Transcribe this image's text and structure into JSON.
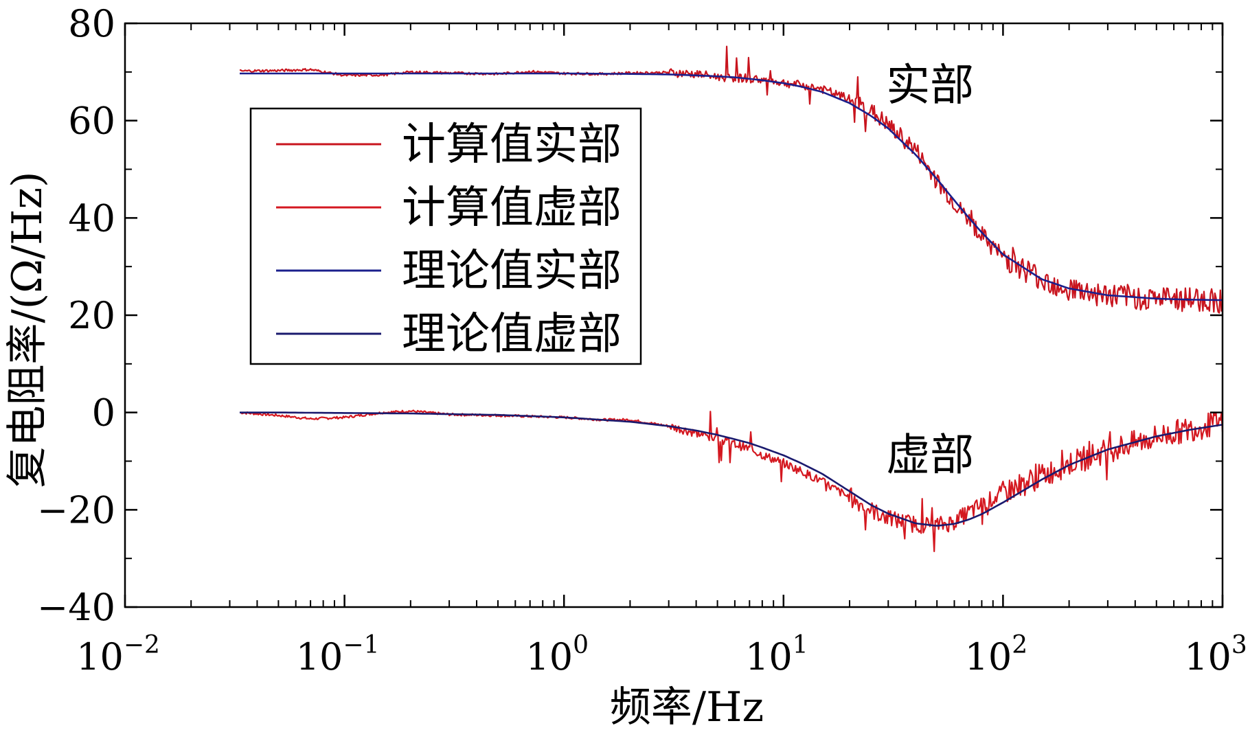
{
  "chart_data": {
    "type": "line",
    "title": "",
    "xlabel": "频率/Hz",
    "ylabel": "复电阻率/(Ω/Hz)",
    "x_scale": "log",
    "xlim": [
      0.01,
      1000
    ],
    "ylim": [
      -40,
      80
    ],
    "grid": false,
    "legend_position": "top-left",
    "x_ticks": [
      {
        "base": "10",
        "exp": "−2",
        "value": 0.01
      },
      {
        "base": "10",
        "exp": "−1",
        "value": 0.1
      },
      {
        "base": "10",
        "exp": "0",
        "value": 1
      },
      {
        "base": "10",
        "exp": "1",
        "value": 10
      },
      {
        "base": "10",
        "exp": "2",
        "value": 100
      },
      {
        "base": "10",
        "exp": "3",
        "value": 1000
      }
    ],
    "y_ticks": [
      {
        "label": "80",
        "value": 80
      },
      {
        "label": "60",
        "value": 60
      },
      {
        "label": "40",
        "value": 40
      },
      {
        "label": "20",
        "value": 20
      },
      {
        "label": "0",
        "value": 0
      },
      {
        "label": "−20",
        "value": -20
      },
      {
        "label": "−40",
        "value": -40
      }
    ],
    "annotations": [
      {
        "text": "实部",
        "x": 50,
        "y": 67
      },
      {
        "text": "虚部",
        "x": 50,
        "y": -9
      }
    ],
    "series": [
      {
        "name": "计算值实部",
        "color": "#c8141e",
        "x": [
          0.0333,
          0.05,
          0.07,
          0.1,
          0.15,
          0.2,
          0.3,
          0.5,
          0.7,
          1,
          1.5,
          2,
          3,
          4,
          5,
          6,
          7,
          8,
          10,
          12,
          15,
          20,
          25,
          30,
          40,
          50,
          60,
          70,
          80,
          100,
          150,
          200,
          300,
          500,
          700,
          1000
        ],
        "y": [
          70.2,
          70.3,
          70.5,
          69.3,
          69.4,
          70.0,
          69.8,
          69.6,
          70.1,
          69.7,
          69.6,
          69.8,
          69.9,
          69.6,
          69.0,
          68.8,
          68.7,
          68.4,
          67.8,
          67.3,
          66.5,
          64.4,
          62.0,
          59.0,
          54.0,
          47.5,
          43.0,
          39.5,
          36.5,
          32.0,
          27.5,
          25.5,
          24.0,
          23.5,
          23.3,
          23.0
        ]
      },
      {
        "name": "计算值虚部",
        "color": "#d41820",
        "x": [
          0.0333,
          0.05,
          0.07,
          0.1,
          0.15,
          0.2,
          0.3,
          0.5,
          0.7,
          1,
          1.5,
          2,
          3,
          4,
          5,
          6,
          7,
          8,
          10,
          12,
          15,
          20,
          25,
          30,
          40,
          50,
          60,
          70,
          80,
          100,
          150,
          200,
          300,
          500,
          700,
          1000
        ],
        "y": [
          0,
          -0.6,
          -1.3,
          -1.0,
          0,
          0.3,
          -0.4,
          -0.6,
          -0.8,
          -1.0,
          -1.5,
          -1.5,
          -2.8,
          -4.2,
          -5.5,
          -6.5,
          -7.5,
          -8.7,
          -10.4,
          -12.0,
          -14.2,
          -17.5,
          -20.0,
          -21.8,
          -23.0,
          -23.2,
          -22.5,
          -20.5,
          -19.0,
          -16.5,
          -13.0,
          -10.5,
          -7.8,
          -5.0,
          -3.5,
          -2.0
        ]
      },
      {
        "name": "理论值实部",
        "color": "#1a1f8c",
        "x": [
          0.0333,
          0.05,
          0.1,
          0.2,
          0.5,
          1,
          2,
          3,
          4,
          5,
          6,
          7,
          8,
          10,
          12,
          15,
          20,
          25,
          30,
          40,
          50,
          60,
          70,
          80,
          100,
          150,
          200,
          300,
          500,
          700,
          1000
        ],
        "y": [
          69.7,
          69.7,
          69.7,
          69.7,
          69.7,
          69.7,
          69.6,
          69.5,
          69.3,
          69.1,
          68.9,
          68.6,
          68.3,
          67.7,
          67.0,
          65.9,
          63.6,
          61.0,
          58.4,
          53.0,
          48.0,
          43.6,
          40.0,
          37.0,
          32.5,
          27.4,
          25.5,
          24.1,
          23.4,
          23.2,
          23.1
        ]
      },
      {
        "name": "理论值虚部",
        "color": "#1a1a6e",
        "x": [
          0.0333,
          0.05,
          0.1,
          0.2,
          0.5,
          1,
          2,
          3,
          4,
          5,
          6,
          7,
          8,
          10,
          12,
          15,
          20,
          25,
          30,
          40,
          50,
          60,
          70,
          80,
          100,
          150,
          200,
          300,
          500,
          700,
          1000
        ],
        "y": [
          0,
          0,
          -0.1,
          -0.2,
          -0.5,
          -1.0,
          -1.9,
          -2.8,
          -3.7,
          -4.6,
          -5.5,
          -6.3,
          -7.2,
          -8.8,
          -10.4,
          -12.6,
          -16.2,
          -19.0,
          -20.8,
          -22.8,
          -23.3,
          -22.9,
          -22.0,
          -20.9,
          -18.5,
          -13.8,
          -10.8,
          -7.6,
          -4.9,
          -3.6,
          -2.5
        ]
      }
    ]
  }
}
